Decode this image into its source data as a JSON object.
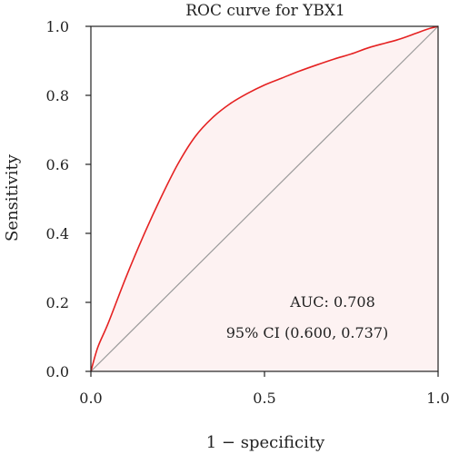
{
  "chart_data": {
    "type": "line",
    "title": "ROC curve for YBX1",
    "xlabel": "1 − specificity",
    "ylabel": "Sensitivity",
    "xlim": [
      0.0,
      1.0
    ],
    "ylim": [
      0.0,
      1.0
    ],
    "x_ticks": [
      "0.0",
      "0.5",
      "1.0"
    ],
    "y_ticks": [
      "0.0",
      "0.2",
      "0.4",
      "0.6",
      "0.8",
      "1.0"
    ],
    "grid": false,
    "series": [
      {
        "x": [
          0.0,
          0.02,
          0.05,
          0.1,
          0.15,
          0.2,
          0.25,
          0.3,
          0.35,
          0.4,
          0.45,
          0.5,
          0.55,
          0.6,
          0.65,
          0.7,
          0.75,
          0.8,
          0.85,
          0.88,
          0.91,
          0.95,
          0.98,
          1.0
        ],
        "y": [
          0.0,
          0.07,
          0.14,
          0.27,
          0.39,
          0.5,
          0.6,
          0.68,
          0.735,
          0.775,
          0.805,
          0.83,
          0.85,
          0.87,
          0.888,
          0.905,
          0.92,
          0.938,
          0.952,
          0.96,
          0.97,
          0.985,
          0.995,
          1.0
        ],
        "color": "#e52222",
        "fill": "#fdf2f2"
      }
    ],
    "reference_line": {
      "x": [
        0,
        1
      ],
      "y": [
        0,
        1
      ],
      "color": "#9a9a9a"
    },
    "annotations": [
      "AUC: 0.708",
      "95% CI (0.600, 0.737)"
    ]
  }
}
